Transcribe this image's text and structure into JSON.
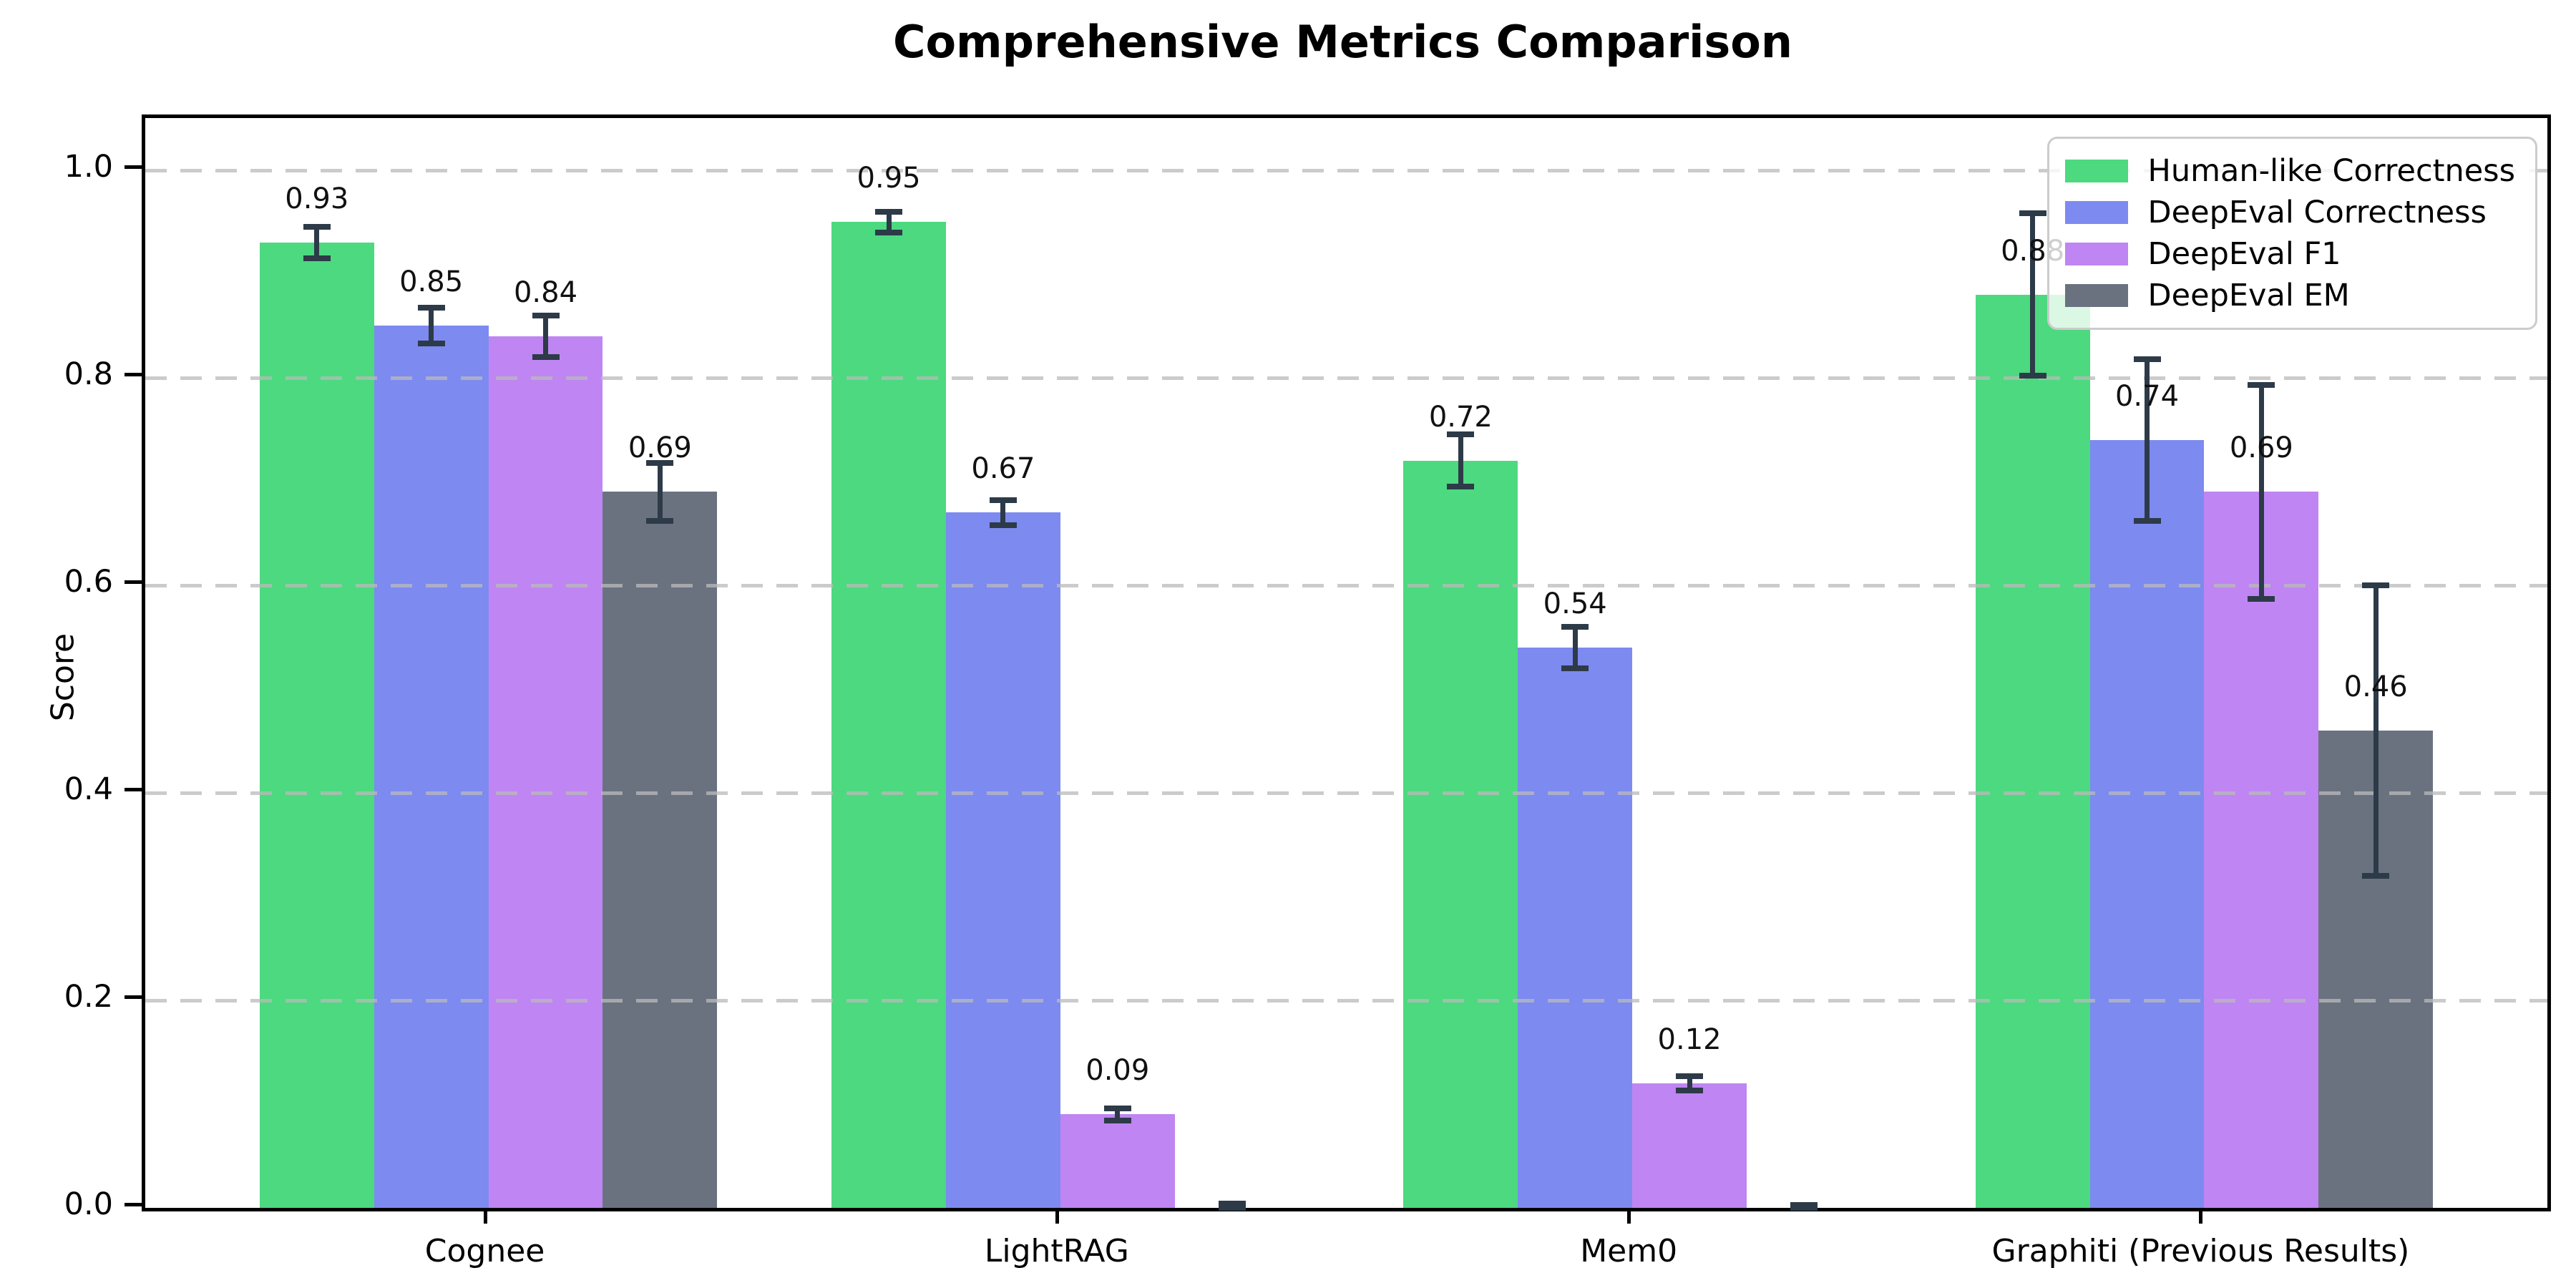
{
  "chart_data": {
    "type": "bar",
    "title": "Comprehensive Metrics Comparison",
    "ylabel": "Score",
    "xlabel": "",
    "categories": [
      "Cognee",
      "LightRAG",
      "Mem0",
      "Graphiti (Previous Results)"
    ],
    "series": [
      {
        "name": "Human-like Correctness",
        "color": "#4cd97f",
        "values": [
          0.93,
          0.95,
          0.72,
          0.88
        ],
        "errors": [
          0.015,
          0.01,
          0.025,
          0.078
        ],
        "labels": [
          "0.93",
          "0.95",
          "0.72",
          "0.88"
        ]
      },
      {
        "name": "DeepEval Correctness",
        "color": "#7d8af0",
        "values": [
          0.85,
          0.67,
          0.54,
          0.74
        ],
        "errors": [
          0.017,
          0.012,
          0.02,
          0.078
        ],
        "labels": [
          "0.85",
          "0.67",
          "0.54",
          "0.74"
        ]
      },
      {
        "name": "DeepEval F1",
        "color": "#bf85f2",
        "values": [
          0.84,
          0.09,
          0.12,
          0.69
        ],
        "errors": [
          0.02,
          0.006,
          0.007,
          0.103
        ],
        "labels": [
          "0.84",
          "0.09",
          "0.12",
          "0.69"
        ]
      },
      {
        "name": "DeepEval EM",
        "color": "#6a7280",
        "values": [
          0.69,
          0.0,
          0.0,
          0.46
        ],
        "errors": [
          0.028,
          0.004,
          0.003,
          0.14
        ],
        "labels": [
          "0.69",
          "",
          "",
          "0.46"
        ]
      }
    ],
    "yticks": [
      0.0,
      0.2,
      0.4,
      0.6,
      0.8,
      1.0
    ],
    "ylim": [
      0,
      1.05
    ],
    "grid": "horizontal-dashed",
    "legend_position": "upper-right",
    "error_bar_color": "#2d3a48"
  }
}
